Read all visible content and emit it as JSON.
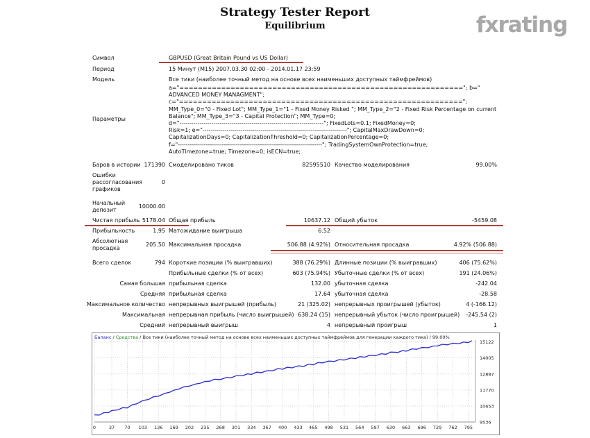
{
  "header": {
    "title": "Strategy Tester Report",
    "subtitle": "Equilibrium",
    "logo": "fxrating"
  },
  "info": {
    "symbol_label": "Символ",
    "symbol": "GBPUSD (Great Britain Pound vs US Dollar)",
    "period_label": "Период",
    "period": "15 Минут (M15) 2007.03.30 02:00 - 2014.01.17 23:59",
    "model_label": "Модель",
    "model": "Все тики (наиболее точный метод на основе всех наименьших доступных таймфреймов)",
    "params_label": "Параметры",
    "params_lines": [
      "a=\"=============================================================\"; b=\"",
      "ADVANCED MONEY MANAGMENT\";",
      "c=\"=============================================================\";",
      "MM_Type_0=\"0 - Fixed Lot\"; MM_Type_1=\"1 - Fixed Money Risked \"; MM_Type_2=\"2 - Fixed Risk Percentage on current",
      "Balance\"; MM_Type_3=\"3 - Capital Protection\"; MM_Type=0;",
      "d=\"------------------------------------------------------------------------\"; FixedLots=0.1; FixedMoney=0;",
      "Risk=1; e=\"------------------------------------------------------------------------\"; CapitalMaxDrawDown=0;",
      "CapitalizationDays=0; CapitalizationThreshold=0; CapitalizationPercentage=0;",
      "f=\"------------------------------------------------------------------------\"; TradingSystemOwnProtection=true;",
      "AutoTimezone=true; Timezone=0; isECN=true;"
    ]
  },
  "stats": {
    "bars_label": "Баров в истории",
    "bars": "171390",
    "ticks_label": "Смоделировано тиков",
    "ticks": "82595510",
    "quality_label": "Качество моделирования",
    "quality": "99.00%",
    "errors_label_1": "Ошибки",
    "errors_label_2": "рассогласования",
    "errors_label_3": "графиков",
    "errors": "0",
    "deposit_label_1": "Начальный",
    "deposit_label_2": "депозит",
    "deposit": "10000.00",
    "net_label": "Чистая прибыль",
    "net": "5178.04",
    "gross_profit_label": "Общая прибыль",
    "gross_profit": "10637.12",
    "gross_loss_label": "Общий убыток",
    "gross_loss": "-5459.08",
    "pf_label": "Прибыльность",
    "pf": "1.95",
    "payoff_label": "Матожидание выигрыша",
    "payoff": "6.52",
    "abs_dd_label_1": "Абсолютная",
    "abs_dd_label_2": "просадка",
    "abs_dd": "205.50",
    "max_dd_label": "Максимальная просадка",
    "max_dd": "506.88 (4.92%)",
    "rel_dd_label": "Относительная просадка",
    "rel_dd": "4.92% (506.88)",
    "trades_label": "Всего сделок",
    "trades": "794",
    "short_label": "Короткие позиции (% выигравших)",
    "short": "388 (76.29%)",
    "long_label": "Длинные позиции (% выигравших)",
    "long": "406 (75.62%)",
    "profit_trades_label": "Прибыльные сделки (% от всех)",
    "profit_trades": "603 (75.94%)",
    "loss_trades_label": "Убыточные сделки (% от всех)",
    "loss_trades": "191 (24.06%)",
    "largest_label": "Самая большая",
    "largest_profit_label": "прибыльная сделка",
    "largest_profit": "132.00",
    "largest_loss_label": "убыточная сделка",
    "largest_loss": "-242.04",
    "average_label": "Средняя",
    "average_profit_label": "прибыльная сделка",
    "average_profit": "17.64",
    "average_loss_label": "убыточная сделка",
    "average_loss": "-28.58",
    "max_count_label": "Максимальное количество",
    "max_cons_wins_label": "непрерывных выигрышей (прибыль)",
    "max_cons_wins": "21 (325.02)",
    "max_cons_losses_label": "непрерывных проигрышей (убыток)",
    "max_cons_losses": "4 (-166.12)",
    "max_label": "Максимальная",
    "max_cons_profit_label": "непрерывная прибыль (число выигрышей)",
    "max_cons_profit": "638.24 (15)",
    "max_cons_loss_label": "непрерывный убыток (число проигрышей)",
    "max_cons_loss": "-245.54 (2)",
    "avg_label": "Средний",
    "avg_cons_wins_label": "непрерывный выигрыш",
    "avg_cons_wins": "4",
    "avg_cons_losses_label": "непрерывный проигрыш",
    "avg_cons_losses": "1"
  },
  "colors": {
    "underline": "#b0403a",
    "balance_line": "#2a2ad0",
    "grid": "#b8b8b8"
  },
  "chart_data": {
    "type": "line",
    "legend_text_1": "Баланс",
    "legend_text_2": "Средства",
    "legend_text_3": "Все тики (наиболее точный метод на основе всех наименьших доступных таймфреймов для генерации каждого тика) / 99.00%",
    "x_ticks": [
      "0",
      "37",
      "70",
      "103",
      "136",
      "169",
      "202",
      "235",
      "268",
      "301",
      "334",
      "367",
      "400",
      "433",
      "465",
      "498",
      "531",
      "564",
      "597",
      "630",
      "663",
      "696",
      "729",
      "762",
      "795"
    ],
    "y_ticks": [
      "9536",
      "10653",
      "11770",
      "12887",
      "14005",
      "15122"
    ],
    "xlim": [
      0,
      810
    ],
    "ylim": [
      9536,
      15250
    ],
    "series": [
      {
        "name": "Баланс",
        "x": [
          0,
          10,
          20,
          30,
          37,
          50,
          60,
          70,
          80,
          90,
          103,
          115,
          125,
          136,
          150,
          160,
          169,
          180,
          190,
          202,
          215,
          225,
          235,
          245,
          255,
          268,
          280,
          290,
          301,
          315,
          325,
          334,
          345,
          355,
          367,
          380,
          390,
          400,
          410,
          420,
          433,
          445,
          455,
          465,
          475,
          485,
          498,
          510,
          520,
          531,
          545,
          555,
          564,
          575,
          585,
          597,
          610,
          620,
          630,
          645,
          655,
          663,
          675,
          685,
          696,
          710,
          720,
          729,
          740,
          750,
          762,
          775,
          785,
          795,
          802
        ],
        "y": [
          10000,
          10060,
          10150,
          10240,
          10300,
          10420,
          10500,
          10560,
          10700,
          10850,
          11000,
          11150,
          11250,
          11380,
          11500,
          11650,
          11720,
          11880,
          11950,
          12080,
          12150,
          12280,
          12330,
          12420,
          12480,
          12540,
          12600,
          12660,
          12720,
          12800,
          12860,
          12900,
          12980,
          13020,
          13080,
          13160,
          13230,
          13260,
          13320,
          13350,
          13420,
          13460,
          13540,
          13560,
          13640,
          13700,
          13750,
          13800,
          13850,
          13900,
          13960,
          14000,
          14060,
          14100,
          14150,
          14200,
          14260,
          14300,
          14380,
          14430,
          14480,
          14520,
          14600,
          14650,
          14700,
          14760,
          14800,
          14880,
          14920,
          14960,
          15000,
          15040,
          15080,
          15110,
          15178
        ]
      }
    ]
  }
}
